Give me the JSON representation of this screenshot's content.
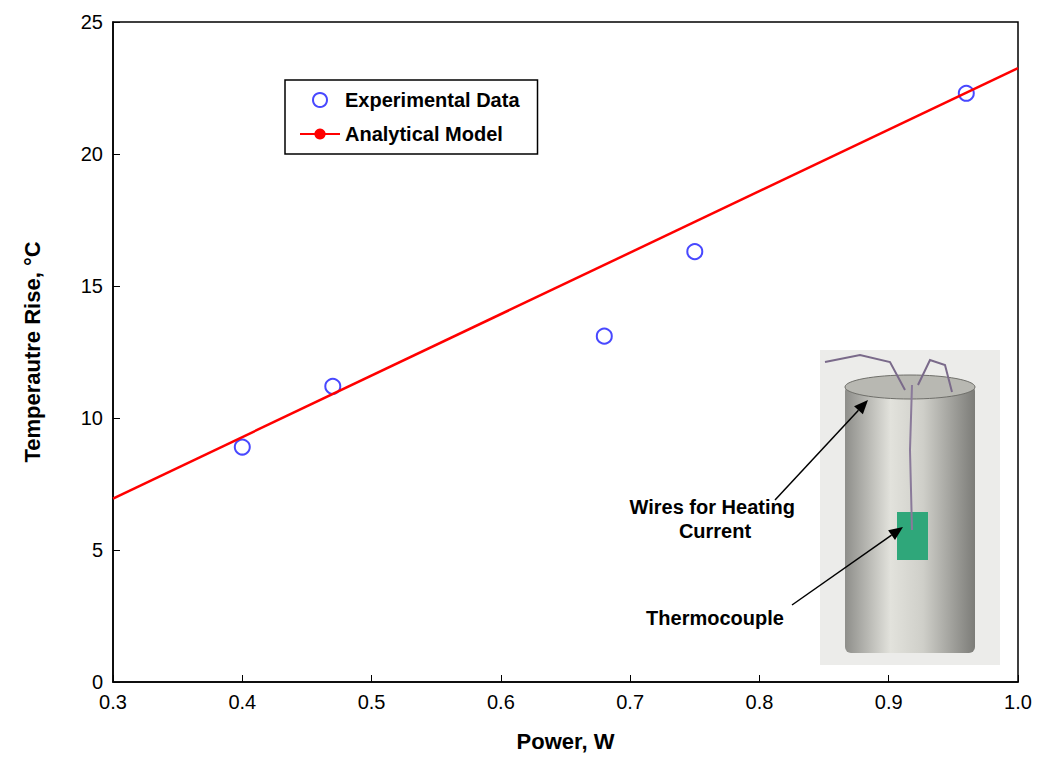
{
  "chart_data": {
    "type": "scatter",
    "x_label": "Power, W",
    "y_label": "Temperautre Rise, °C",
    "xlim": [
      0.3,
      1.0
    ],
    "xticks": [
      0.3,
      0.4,
      0.5,
      0.6,
      0.7,
      0.8,
      0.9,
      {
        "value": 1.0,
        "label": "1.0"
      }
    ],
    "ylim": [
      0,
      25
    ],
    "yticks": [
      0,
      5,
      10,
      15,
      20,
      25
    ],
    "grid": false,
    "legend": "upper left",
    "series": [
      {
        "name": "Experimental Data",
        "type": "scatter",
        "marker": "circle",
        "color": "#1a1aff",
        "x": [
          0.4,
          0.47,
          0.68,
          0.75,
          0.96
        ],
        "values": [
          8.9,
          11.2,
          13.1,
          16.3,
          22.3
        ]
      },
      {
        "name": "Analytical Model",
        "type": "line",
        "line_style": "solid",
        "color": "#ff0000",
        "x": [
          0.3,
          1.0
        ],
        "values": [
          6.95,
          23.25
        ]
      }
    ],
    "annotations": [
      {
        "text": "Wires for Heating Current"
      },
      {
        "text": "Thermocouple"
      }
    ]
  }
}
